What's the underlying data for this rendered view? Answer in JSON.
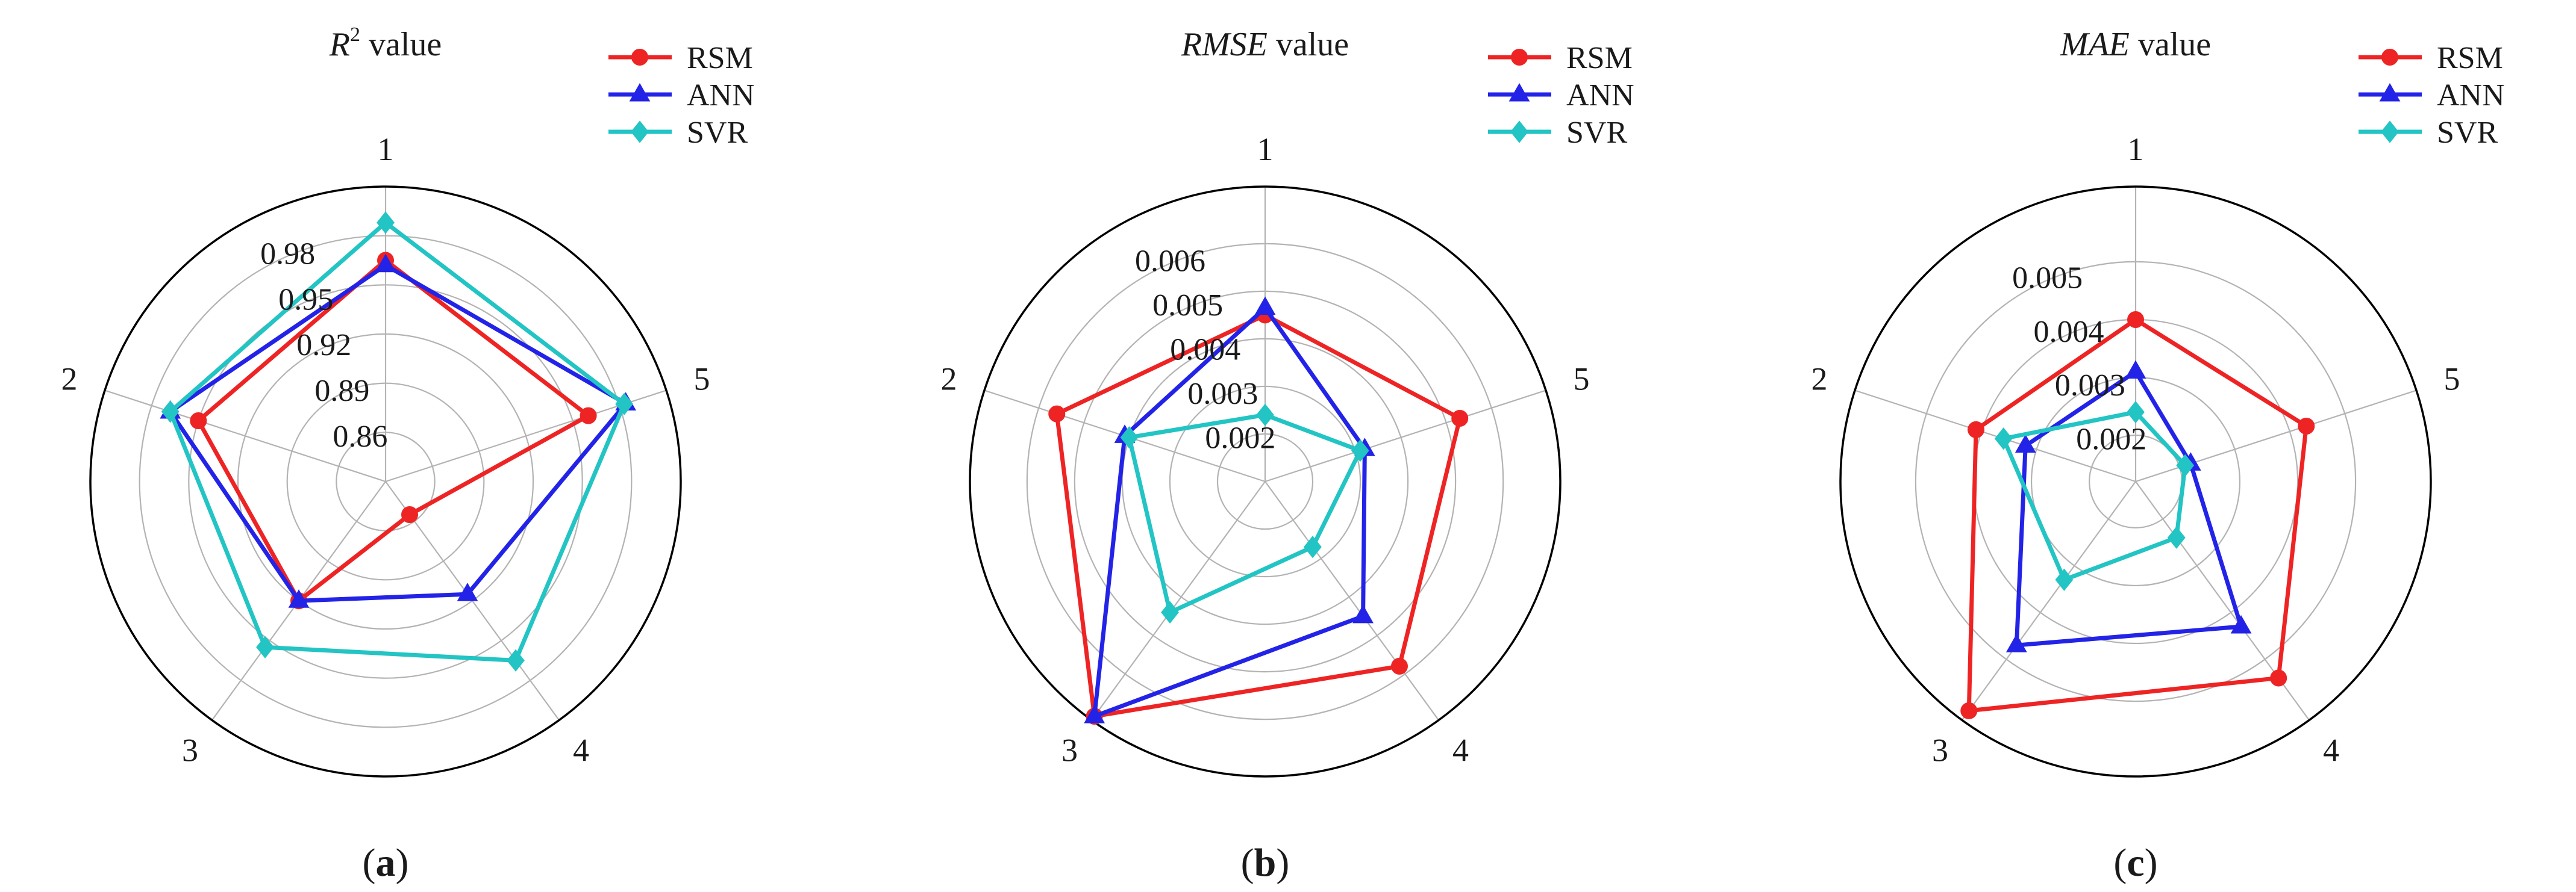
{
  "figure": {
    "colors": {
      "RSM": "#ee2424",
      "ANN": "#2323e8",
      "SVR": "#22c4c4",
      "grid": "#b3b3b3",
      "frame": "#000000"
    }
  },
  "chart_data": [
    {
      "type": "radar",
      "panel_label": "a",
      "title": {
        "symbol": "R",
        "superscript": "2",
        "rest": " value",
        "italic": false
      },
      "axes": [
        "1",
        "2",
        "3",
        "4",
        "5"
      ],
      "rlim": [
        0.83,
        1.01
      ],
      "rticks": [
        0.86,
        0.89,
        0.92,
        0.95,
        0.98
      ],
      "rtick_labels": [
        "0.86",
        "0.89",
        "0.92",
        "0.95",
        "0.98"
      ],
      "legend": [
        "RSM",
        "ANN",
        "SVR"
      ],
      "legend_position": "top-right",
      "series": [
        {
          "name": "RSM",
          "marker": "circle",
          "values": [
            0.965,
            0.95,
            0.92,
            0.855,
            0.96
          ]
        },
        {
          "name": "ANN",
          "marker": "triangle",
          "values": [
            0.962,
            0.968,
            0.92,
            0.915,
            0.984
          ]
        },
        {
          "name": "SVR",
          "marker": "diamond",
          "values": [
            0.988,
            0.968,
            0.955,
            0.965,
            0.983
          ]
        }
      ]
    },
    {
      "type": "radar",
      "panel_label": "b",
      "title": {
        "symbol": "RMSE",
        "superscript": "",
        "rest": " value",
        "italic": true
      },
      "axes": [
        "1",
        "2",
        "3",
        "4",
        "5"
      ],
      "rlim": [
        0.001,
        0.0072
      ],
      "rticks": [
        0.002,
        0.003,
        0.004,
        0.005,
        0.006
      ],
      "rtick_labels": [
        "0.002",
        "0.003",
        "0.004",
        "0.005",
        "0.006"
      ],
      "legend": [
        "RSM",
        "ANN",
        "SVR"
      ],
      "legend_position": "top-right",
      "series": [
        {
          "name": "RSM",
          "marker": "circle",
          "values": [
            0.0045,
            0.0056,
            0.0071,
            0.0058,
            0.0053
          ]
        },
        {
          "name": "ANN",
          "marker": "triangle",
          "values": [
            0.00465,
            0.0041,
            0.0071,
            0.0045,
            0.0032
          ]
        },
        {
          "name": "SVR",
          "marker": "diamond",
          "values": [
            0.0024,
            0.004,
            0.0044,
            0.0027,
            0.0031
          ]
        }
      ]
    },
    {
      "type": "radar",
      "panel_label": "c",
      "title": {
        "symbol": "MAE",
        "superscript": "",
        "rest": " value",
        "italic": true
      },
      "axes": [
        "1",
        "2",
        "3",
        "4",
        "5"
      ],
      "rlim": [
        0.0012,
        0.0063
      ],
      "rticks": [
        0.002,
        0.003,
        0.004,
        0.005
      ],
      "rtick_labels": [
        "0.002",
        "0.003",
        "0.004",
        "0.005"
      ],
      "legend": [
        "RSM",
        "ANN",
        "SVR"
      ],
      "legend_position": "top-right",
      "series": [
        {
          "name": "RSM",
          "marker": "circle",
          "values": [
            0.004,
            0.0041,
            0.0061,
            0.0054,
            0.0043
          ]
        },
        {
          "name": "ANN",
          "marker": "triangle",
          "values": [
            0.0031,
            0.0032,
            0.0047,
            0.0043,
            0.0022
          ]
        },
        {
          "name": "SVR",
          "marker": "diamond",
          "values": [
            0.0024,
            0.0036,
            0.0033,
            0.0024,
            0.0021
          ]
        }
      ]
    }
  ]
}
